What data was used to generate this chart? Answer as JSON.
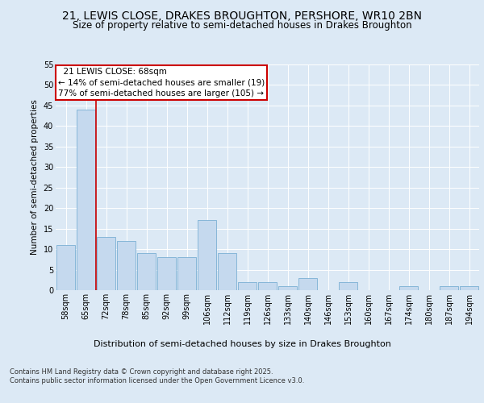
{
  "title": "21, LEWIS CLOSE, DRAKES BROUGHTON, PERSHORE, WR10 2BN",
  "subtitle": "Size of property relative to semi-detached houses in Drakes Broughton",
  "xlabel": "Distribution of semi-detached houses by size in Drakes Broughton",
  "ylabel": "Number of semi-detached properties",
  "categories": [
    "58sqm",
    "65sqm",
    "72sqm",
    "78sqm",
    "85sqm",
    "92sqm",
    "99sqm",
    "106sqm",
    "112sqm",
    "119sqm",
    "126sqm",
    "133sqm",
    "140sqm",
    "146sqm",
    "153sqm",
    "160sqm",
    "167sqm",
    "174sqm",
    "180sqm",
    "187sqm",
    "194sqm"
  ],
  "values": [
    11,
    44,
    13,
    12,
    9,
    8,
    8,
    17,
    9,
    2,
    2,
    1,
    3,
    0,
    2,
    0,
    0,
    1,
    0,
    1,
    1
  ],
  "bar_color": "#c5d9ee",
  "bar_edge_color": "#7bafd4",
  "red_line_x": 1.5,
  "highlight_label": "21 LEWIS CLOSE: 68sqm",
  "pct_smaller": "14% of semi-detached houses are smaller (19)",
  "pct_larger": "77% of semi-detached houses are larger (105)",
  "annotation_box_color": "#cc0000",
  "ylim": [
    0,
    55
  ],
  "yticks": [
    0,
    5,
    10,
    15,
    20,
    25,
    30,
    35,
    40,
    45,
    50,
    55
  ],
  "bg_color": "#dce9f5",
  "footer": "Contains HM Land Registry data © Crown copyright and database right 2025.\nContains public sector information licensed under the Open Government Licence v3.0.",
  "title_fontsize": 10,
  "subtitle_fontsize": 8.5,
  "xlabel_fontsize": 8,
  "ylabel_fontsize": 7.5,
  "tick_fontsize": 7,
  "annotation_fontsize": 7.5,
  "footer_fontsize": 6
}
